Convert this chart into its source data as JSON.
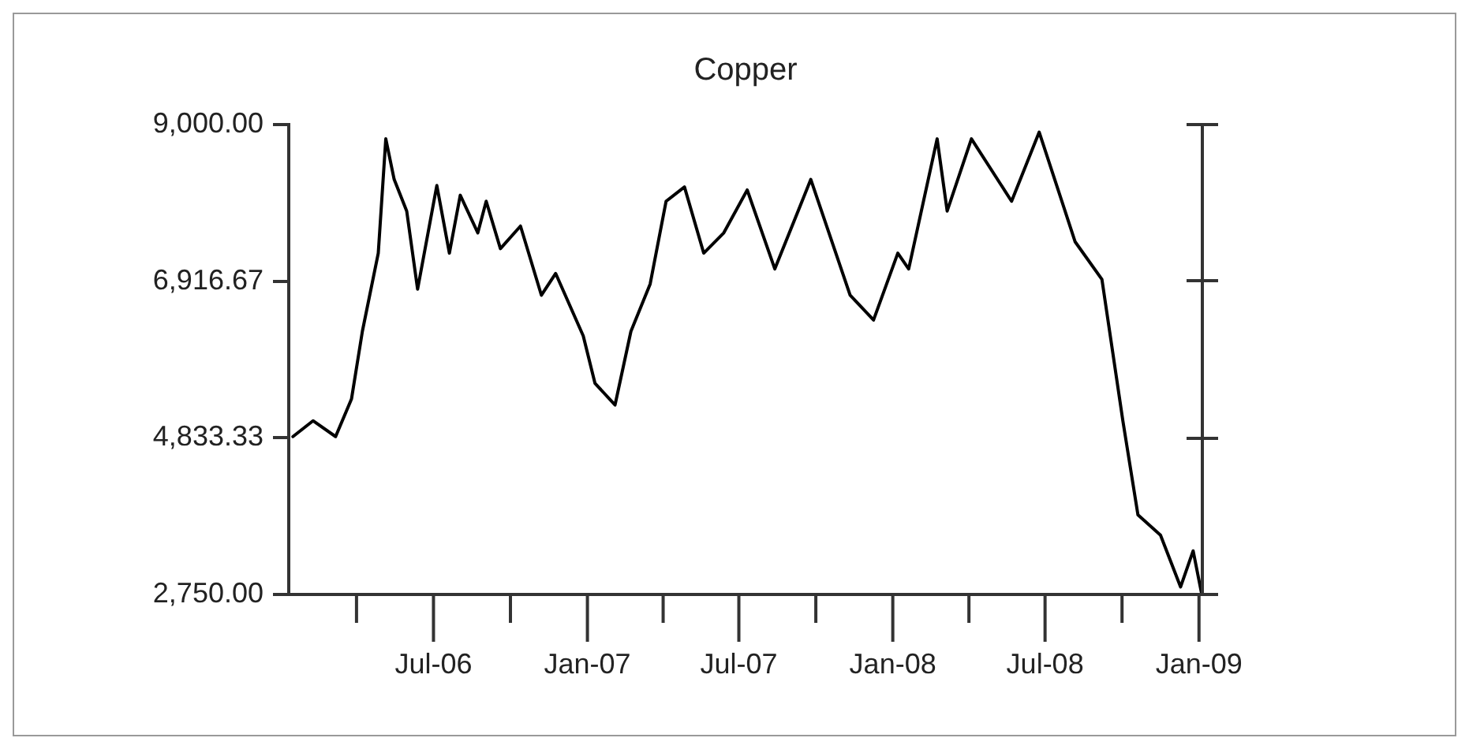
{
  "chart_data": {
    "type": "line",
    "title": "Copper",
    "x": [
      "2006-01-14",
      "2006-02-07",
      "2006-03-06",
      "2006-03-25",
      "2006-04-07",
      "2006-04-26",
      "2006-05-05",
      "2006-05-15",
      "2006-05-30",
      "2006-06-12",
      "2006-07-05",
      "2006-07-20",
      "2006-08-02",
      "2006-08-23",
      "2006-09-02",
      "2006-09-19",
      "2006-10-13",
      "2006-11-07",
      "2006-11-24",
      "2006-12-27",
      "2007-01-10",
      "2007-02-03",
      "2007-02-22",
      "2007-03-17",
      "2007-04-05",
      "2007-04-27",
      "2007-05-20",
      "2007-06-13",
      "2007-07-11",
      "2007-08-13",
      "2007-09-25",
      "2007-11-11",
      "2007-12-09",
      "2008-01-07",
      "2008-01-20",
      "2008-02-23",
      "2008-03-06",
      "2008-04-04",
      "2008-05-22",
      "2008-06-24",
      "2008-08-06",
      "2008-09-07",
      "2008-10-02",
      "2008-10-20",
      "2008-11-16",
      "2008-12-10",
      "2008-12-25",
      "2009-01-04"
    ],
    "series": [
      {
        "color": "#000000",
        "values": [
          4850,
          5060,
          4850,
          5350,
          6250,
          7290,
          8810,
          8270,
          7850,
          6810,
          8190,
          7290,
          8060,
          7560,
          7980,
          7350,
          7650,
          6730,
          7020,
          6190,
          5560,
          5270,
          6250,
          6880,
          7980,
          8170,
          7290,
          7560,
          8130,
          7080,
          8270,
          6730,
          6400,
          7290,
          7080,
          8810,
          7850,
          8810,
          7980,
          8900,
          7440,
          6940,
          5060,
          3810,
          3540,
          2850,
          3330,
          2770
        ]
      }
    ],
    "xlim": [
      "2006-01-09",
      "2009-01-05"
    ],
    "xticks": [
      {
        "value": "2006-07",
        "label": "Jul-06"
      },
      {
        "value": "2007-01",
        "label": "Jan-07"
      },
      {
        "value": "2007-07",
        "label": "Jul-07"
      },
      {
        "value": "2008-01",
        "label": "Jan-08"
      },
      {
        "value": "2008-07",
        "label": "Jul-08"
      },
      {
        "value": "2009-01",
        "label": "Jan-09"
      }
    ],
    "ylim": [
      2750,
      9000
    ],
    "yticks": [
      {
        "value": 2750,
        "label": "2,750.00"
      },
      {
        "value": 4833.33,
        "label": "4,833.33"
      },
      {
        "value": 6916.67,
        "label": "6,916.67"
      },
      {
        "value": 9000,
        "label": "9,000.00"
      }
    ],
    "grid": false,
    "legend": false,
    "marker": "none",
    "line_style": "solid"
  }
}
